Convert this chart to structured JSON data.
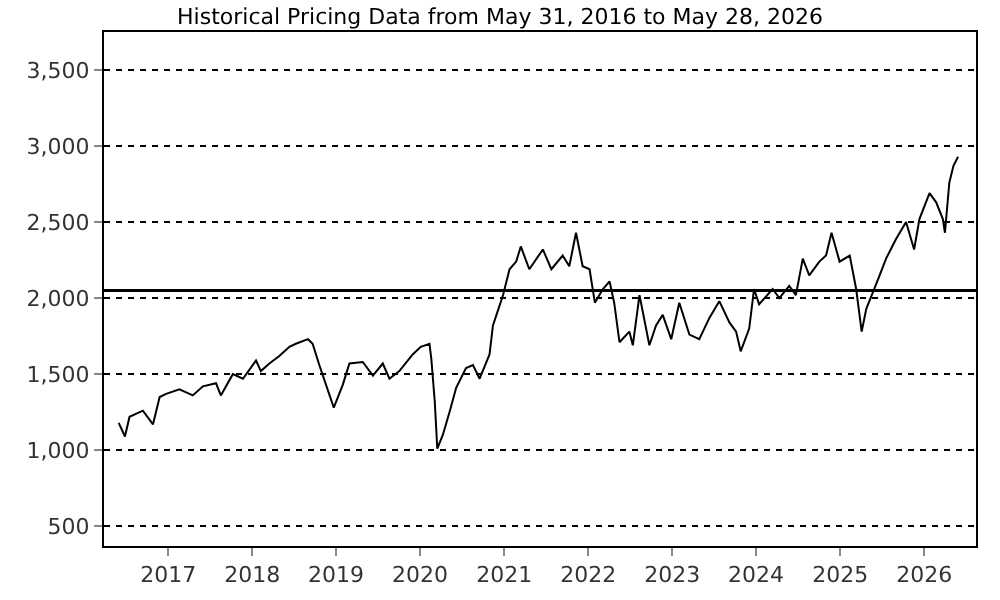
{
  "chart_data": {
    "type": "line",
    "title": "Historical Pricing Data from May 31, 2016 to May 28, 2026",
    "x": [
      "2016-05-31",
      "2016-06-27",
      "2016-07-17",
      "2016-09-13",
      "2016-10-27",
      "2016-11-25",
      "2016-12-23",
      "2017-02-19",
      "2017-04-18",
      "2017-06-01",
      "2017-07-28",
      "2017-08-18",
      "2017-10-09",
      "2017-11-22",
      "2018-01-18",
      "2018-02-08",
      "2018-03-17",
      "2018-04-29",
      "2018-06-12",
      "2018-07-10",
      "2018-09-01",
      "2018-09-21",
      "2018-10-20",
      "2018-12-22",
      "2019-01-30",
      "2019-02-28",
      "2019-04-27",
      "2019-06-10",
      "2019-07-23",
      "2019-08-21",
      "2019-10-03",
      "2019-11-30",
      "2020-01-04",
      "2020-02-11",
      "2020-02-19",
      "2020-03-05",
      "2020-03-16",
      "2020-04-09",
      "2020-05-08",
      "2020-06-06",
      "2020-07-19",
      "2020-08-18",
      "2020-09-16",
      "2020-10-29",
      "2020-11-13",
      "2020-12-27",
      "2021-01-24",
      "2021-02-22",
      "2021-03-14",
      "2021-04-20",
      "2021-06-18",
      "2021-07-25",
      "2021-09-12",
      "2021-10-11",
      "2021-11-09",
      "2021-12-08",
      "2022-01-07",
      "2022-01-30",
      "2022-03-06",
      "2022-04-04",
      "2022-04-24",
      "2022-05-17",
      "2022-06-29",
      "2022-07-14",
      "2022-08-12",
      "2022-09-24",
      "2022-10-23",
      "2022-11-21",
      "2022-12-28",
      "2023-02-01",
      "2023-03-17",
      "2023-04-29",
      "2023-06-12",
      "2023-07-25",
      "2023-09-07",
      "2023-10-06",
      "2023-10-26",
      "2023-12-02",
      "2023-12-23",
      "2024-01-14",
      "2024-03-13",
      "2024-04-11",
      "2024-05-24",
      "2024-06-22",
      "2024-07-22",
      "2024-08-19",
      "2024-10-02",
      "2024-10-31",
      "2024-11-24",
      "2024-12-29",
      "2025-02-11",
      "2025-03-11",
      "2025-04-04",
      "2025-04-24",
      "2025-05-23",
      "2025-06-21",
      "2025-07-19",
      "2025-09-01",
      "2025-10-14",
      "2025-11-18",
      "2025-12-11",
      "2026-01-24",
      "2026-02-22",
      "2026-03-23",
      "2026-04-01",
      "2026-04-20",
      "2026-05-08",
      "2026-05-28"
    ],
    "series": [
      {
        "color": "#000000",
        "values": [
          1180,
          1090,
          1220,
          1260,
          1170,
          1350,
          1370,
          1400,
          1360,
          1420,
          1440,
          1360,
          1500,
          1470,
          1590,
          1520,
          1570,
          1620,
          1680,
          1700,
          1730,
          1700,
          1560,
          1280,
          1430,
          1570,
          1580,
          1490,
          1570,
          1470,
          1520,
          1630,
          1680,
          1700,
          1600,
          1320,
          1010,
          1100,
          1250,
          1410,
          1540,
          1560,
          1470,
          1630,
          1820,
          2020,
          2190,
          2240,
          2340,
          2190,
          2320,
          2190,
          2280,
          2210,
          2430,
          2210,
          2190,
          1970,
          2060,
          2110,
          1970,
          1710,
          1780,
          1690,
          2020,
          1690,
          1820,
          1890,
          1730,
          1970,
          1760,
          1730,
          1870,
          1980,
          1840,
          1780,
          1650,
          1800,
          2060,
          1960,
          2060,
          2000,
          2080,
          2020,
          2260,
          2150,
          2240,
          2280,
          2430,
          2240,
          2280,
          2060,
          1780,
          1930,
          2040,
          2150,
          2260,
          2390,
          2500,
          2320,
          2520,
          2690,
          2630,
          2520,
          2430,
          2760,
          2870,
          2930
        ]
      }
    ],
    "xlim": [
      "2016-03-28",
      "2026-08-14"
    ],
    "xticks": [
      "2017",
      "2018",
      "2019",
      "2020",
      "2021",
      "2022",
      "2023",
      "2024",
      "2025",
      "2026"
    ],
    "ylim": [
      370,
      3750
    ],
    "yticks": [
      {
        "value": 500,
        "label": "500"
      },
      {
        "value": 1000,
        "label": "1,000"
      },
      {
        "value": 1500,
        "label": "1,500"
      },
      {
        "value": 2000,
        "label": "2,000"
      },
      {
        "value": 2500,
        "label": "2,500"
      },
      {
        "value": 3000,
        "label": "3,000"
      },
      {
        "value": 3500,
        "label": "3,500"
      }
    ],
    "ref_lines": [
      {
        "axis": "y",
        "value": 2050,
        "color": "#000000",
        "line_style": "solid"
      }
    ],
    "grid": "y",
    "marker": "none",
    "line_style": "solid"
  }
}
